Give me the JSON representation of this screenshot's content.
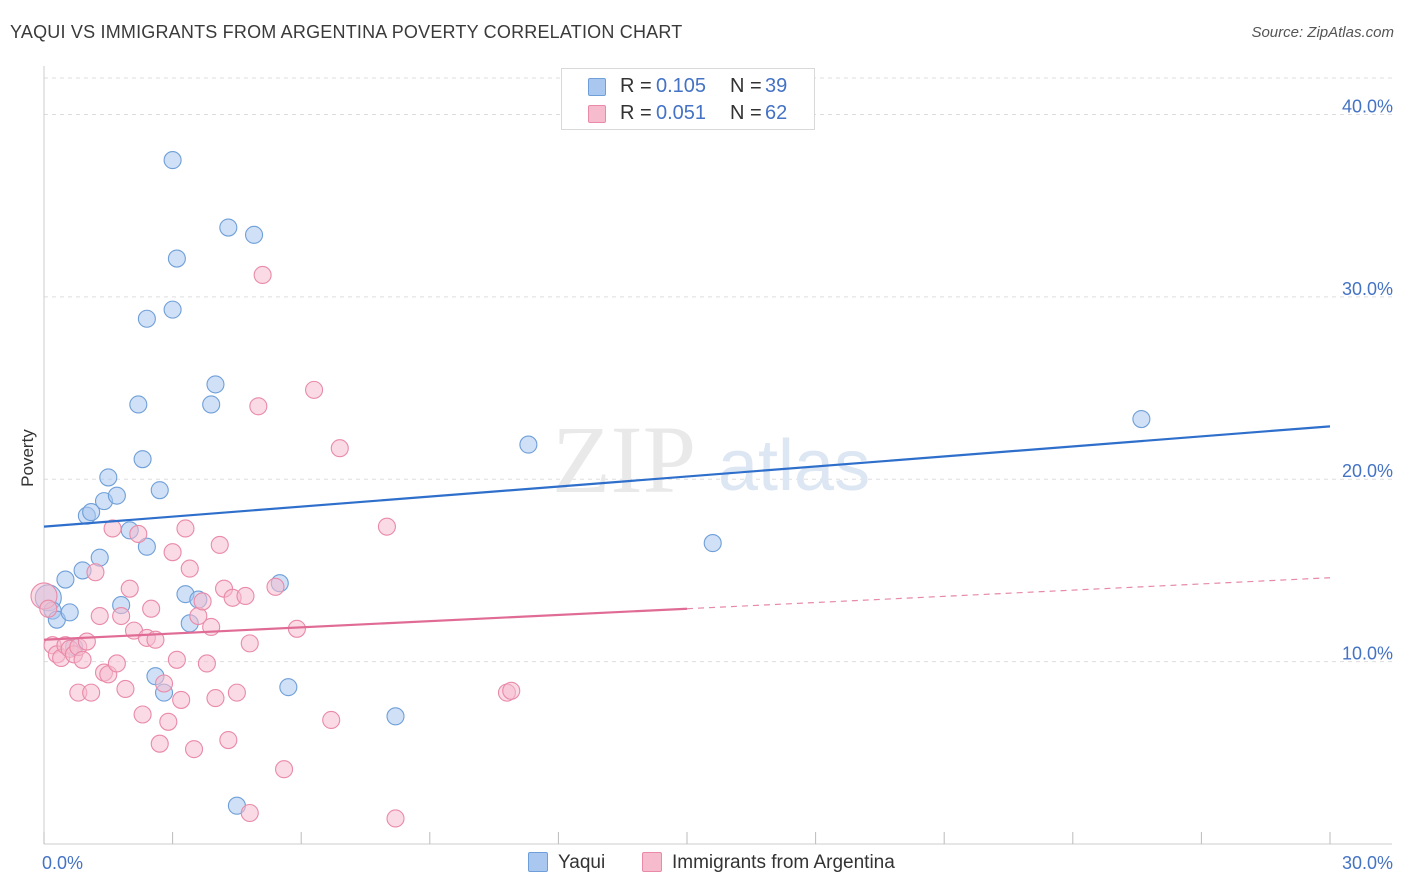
{
  "header": {
    "title": "YAQUI VS IMMIGRANTS FROM ARGENTINA POVERTY CORRELATION CHART",
    "source": "Source: ZipAtlas.com"
  },
  "watermark": {
    "zip": "ZIP",
    "atlas": "atlas"
  },
  "legend": {
    "rows": [
      {
        "r_label": "R = ",
        "r_value": "0.105",
        "n_label": "N = ",
        "n_value": "39"
      },
      {
        "r_label": "R = ",
        "r_value": "0.051",
        "n_label": "N = ",
        "n_value": "62"
      }
    ]
  },
  "colors": {
    "yaqui_fill": "#a9c7ef",
    "yaqui_stroke": "#6f9fd8",
    "yaqui_line": "#2f6fcc",
    "arg_fill": "#f6bccd",
    "arg_stroke": "#e98aa8",
    "arg_line": "#e06b95",
    "axis_text": "#4472c4",
    "grid": "#dddddd"
  },
  "chart_data": {
    "type": "scatter",
    "title": "YAQUI VS IMMIGRANTS FROM ARGENTINA POVERTY CORRELATION CHART",
    "xlabel": "",
    "ylabel": "Poverty",
    "xlim": [
      0,
      30
    ],
    "ylim": [
      0,
      42
    ],
    "x_tick_labels": [
      "0.0%",
      "30.0%"
    ],
    "y_ticks": [
      10,
      20,
      30,
      40
    ],
    "y_tick_labels": [
      "10.0%",
      "20.0%",
      "30.0%",
      "40.0%"
    ],
    "grid": true,
    "legend_position": "top-center",
    "series": [
      {
        "name": "Yaqui",
        "r": 0.105,
        "n": 39,
        "trend": {
          "x0": 0,
          "y0": 17.4,
          "x1": 30,
          "y1": 22.9,
          "dashed_from": null
        },
        "points": [
          [
            0.1,
            13.5
          ],
          [
            0.2,
            12.8
          ],
          [
            0.3,
            12.3
          ],
          [
            0.5,
            14.5
          ],
          [
            0.6,
            12.7
          ],
          [
            0.7,
            10.8
          ],
          [
            0.9,
            15.0
          ],
          [
            1.0,
            18.0
          ],
          [
            1.1,
            18.2
          ],
          [
            1.3,
            15.7
          ],
          [
            1.4,
            18.8
          ],
          [
            1.5,
            20.1
          ],
          [
            1.7,
            19.1
          ],
          [
            1.8,
            13.1
          ],
          [
            2.0,
            17.2
          ],
          [
            2.2,
            24.1
          ],
          [
            2.3,
            21.1
          ],
          [
            2.4,
            28.8
          ],
          [
            2.4,
            16.3
          ],
          [
            2.6,
            9.2
          ],
          [
            2.7,
            19.4
          ],
          [
            2.8,
            8.3
          ],
          [
            3.0,
            37.5
          ],
          [
            3.0,
            29.3
          ],
          [
            3.1,
            32.1
          ],
          [
            3.3,
            13.7
          ],
          [
            3.4,
            12.1
          ],
          [
            3.6,
            13.4
          ],
          [
            3.9,
            24.1
          ],
          [
            4.0,
            25.2
          ],
          [
            4.3,
            33.8
          ],
          [
            4.5,
            2.1
          ],
          [
            4.9,
            33.4
          ],
          [
            5.5,
            14.3
          ],
          [
            5.7,
            8.6
          ],
          [
            8.2,
            7.0
          ],
          [
            11.3,
            21.9
          ],
          [
            15.6,
            16.5
          ],
          [
            25.6,
            23.3
          ]
        ]
      },
      {
        "name": "Immigrants from Argentina",
        "r": 0.051,
        "n": 62,
        "trend": {
          "x0": 0,
          "y0": 11.2,
          "x1": 30,
          "y1": 14.6,
          "dashed_from": 15.0
        },
        "points": [
          [
            0.0,
            13.6
          ],
          [
            0.1,
            12.9
          ],
          [
            0.2,
            10.9
          ],
          [
            0.3,
            10.4
          ],
          [
            0.4,
            10.2
          ],
          [
            0.5,
            10.9
          ],
          [
            0.6,
            10.7
          ],
          [
            0.7,
            10.4
          ],
          [
            0.8,
            10.8
          ],
          [
            0.8,
            8.3
          ],
          [
            0.9,
            10.1
          ],
          [
            1.0,
            11.1
          ],
          [
            1.1,
            8.3
          ],
          [
            1.2,
            14.9
          ],
          [
            1.3,
            12.5
          ],
          [
            1.4,
            9.4
          ],
          [
            1.5,
            9.3
          ],
          [
            1.6,
            17.3
          ],
          [
            1.7,
            9.9
          ],
          [
            1.8,
            12.5
          ],
          [
            1.9,
            8.5
          ],
          [
            2.0,
            14.0
          ],
          [
            2.1,
            11.7
          ],
          [
            2.2,
            17.0
          ],
          [
            2.3,
            7.1
          ],
          [
            2.4,
            11.3
          ],
          [
            2.5,
            12.9
          ],
          [
            2.6,
            11.2
          ],
          [
            2.7,
            5.5
          ],
          [
            2.8,
            8.8
          ],
          [
            2.9,
            6.7
          ],
          [
            3.0,
            16.0
          ],
          [
            3.1,
            10.1
          ],
          [
            3.2,
            7.9
          ],
          [
            3.3,
            17.3
          ],
          [
            3.4,
            15.1
          ],
          [
            3.5,
            5.2
          ],
          [
            3.6,
            12.5
          ],
          [
            3.7,
            13.3
          ],
          [
            3.8,
            9.9
          ],
          [
            3.9,
            11.9
          ],
          [
            4.0,
            8.0
          ],
          [
            4.1,
            16.4
          ],
          [
            4.2,
            14.0
          ],
          [
            4.3,
            5.7
          ],
          [
            4.4,
            13.5
          ],
          [
            4.5,
            8.3
          ],
          [
            4.7,
            13.6
          ],
          [
            4.8,
            11.0
          ],
          [
            5.0,
            24.0
          ],
          [
            5.1,
            31.2
          ],
          [
            5.4,
            14.1
          ],
          [
            5.6,
            4.1
          ],
          [
            5.9,
            11.8
          ],
          [
            6.3,
            24.9
          ],
          [
            6.7,
            6.8
          ],
          [
            6.9,
            21.7
          ],
          [
            8.0,
            17.4
          ],
          [
            8.2,
            1.4
          ],
          [
            10.8,
            8.3
          ],
          [
            10.9,
            8.4
          ],
          [
            4.8,
            1.7
          ]
        ]
      }
    ]
  }
}
